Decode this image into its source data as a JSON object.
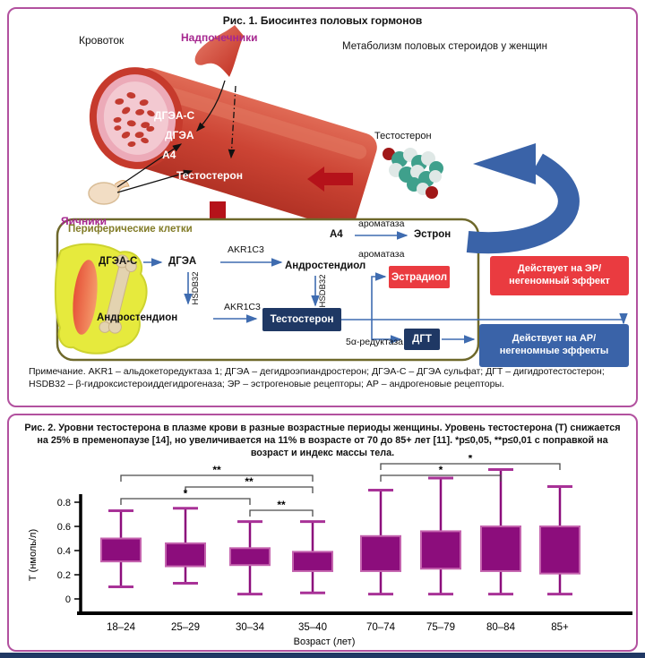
{
  "colors": {
    "panel_border": "#b2519f",
    "magenta_label": "#a6278f",
    "olive_border": "#6e682b",
    "navy": "#1f3864",
    "red_box": "#ea3b40",
    "blue_box": "#3a63a8",
    "dark_red_arrow": "#b5121a",
    "boxplot_fill": "#8c0d7c"
  },
  "fig1": {
    "title": "Рис. 1. Биосинтез половых гормонов",
    "bloodflow": "Кровоток",
    "adrenals": "Надпочечники",
    "metabolism": "Метаболизм половых стероидов у женщин",
    "ovaries": "Яичники",
    "molecule_label": "Тестостерон",
    "vessel_hormones": [
      "ДГЭА-С",
      "ДГЭА",
      "А4",
      "Тестостерон"
    ],
    "box": {
      "title": "Периферические клетки",
      "dheas": "ДГЭА-С",
      "dhea": "ДГЭА",
      "androstenediol": "Андростендиол",
      "androstenedione": "Андростендион",
      "testosterone": "Тестостерон",
      "a4": "А4",
      "estrone": "Эстрон",
      "estradiol": "Эстрадиол",
      "dht": "ДГТ",
      "akr1c3": "AKR1C3",
      "hsdb32": "HSDB32",
      "aromatase": "ароматаза",
      "reductase": "5α-редуктаза"
    },
    "er_box": "Действует на ЭР/негеномный эффект",
    "ar_box": "Действует на АР/негеномные эффекты",
    "note": "Примечание. AKR1 – альдокеторедуктаза 1; ДГЭА – дегидроэпиандростерон; ДГЭА-С – ДГЭА сульфат; ДГТ – дигидротестостерон; HSDB32 – β-гидроксистероиддегидрогеназа; ЭР – эстрогеновые рецепторы; АР – андрогеновые рецепторы."
  },
  "fig2": {
    "caption": "Рис. 2. Уровни тестостерона в плазме крови в разные возрастные периоды женщины. Уровень тестостерона (Т) снижается на 25% в пременопаузе [14], но увеличивается на 11% в возрасте от 70 до 85+ лет [11]. *p≤0,05, **p≤0,01 с поправкой на возраст и индекс массы тела.",
    "chart_data": {
      "type": "boxplot",
      "title": "",
      "xlabel": "Возраст (лет)",
      "ylabel": "Т (нмоль/л)",
      "yticks": [
        0,
        0.2,
        0.4,
        0.6,
        0.8
      ],
      "ylim": [
        0,
        1.15
      ],
      "grid": false,
      "categories": [
        "18–24",
        "25–29",
        "30–34",
        "35–40",
        "70–74",
        "75–79",
        "80–84",
        "85+"
      ],
      "boxes": [
        {
          "group": "18–24",
          "low": 0.1,
          "q1": 0.31,
          "q3": 0.5,
          "high": 0.73
        },
        {
          "group": "25–29",
          "low": 0.13,
          "q1": 0.27,
          "q3": 0.46,
          "high": 0.75
        },
        {
          "group": "30–34",
          "low": 0.04,
          "q1": 0.28,
          "q3": 0.42,
          "high": 0.64
        },
        {
          "group": "35–40",
          "low": 0.05,
          "q1": 0.23,
          "q3": 0.39,
          "high": 0.64
        },
        {
          "group": "70–74",
          "low": 0.04,
          "q1": 0.23,
          "q3": 0.52,
          "high": 0.9
        },
        {
          "group": "75–79",
          "low": 0.04,
          "q1": 0.25,
          "q3": 0.56,
          "high": 1.0
        },
        {
          "group": "80–84",
          "low": 0.04,
          "q1": 0.23,
          "q3": 0.6,
          "high": 1.07
        },
        {
          "group": "85+",
          "low": 0.04,
          "q1": 0.21,
          "q3": 0.6,
          "high": 0.93
        }
      ],
      "significance": [
        {
          "groups": [
            "18–24",
            "35–40"
          ],
          "label": "**",
          "level": 1
        },
        {
          "groups": [
            "25–29",
            "35–40"
          ],
          "label": "**",
          "level": 2
        },
        {
          "groups": [
            "18–24",
            "30–34"
          ],
          "label": "*",
          "level": 3
        },
        {
          "groups": [
            "30–34",
            "35–40"
          ],
          "label": "**",
          "level": 4
        },
        {
          "groups": [
            "70–74",
            "85+"
          ],
          "label": "*",
          "level": 0
        },
        {
          "groups": [
            "70–74",
            "80–84"
          ],
          "label": "*",
          "level": 1
        }
      ]
    }
  }
}
